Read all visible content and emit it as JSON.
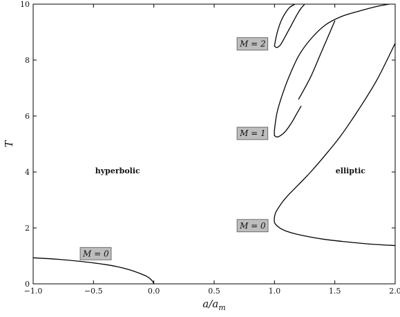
{
  "chart_data": {
    "type": "line",
    "title": "",
    "xlabel": "a/a_m",
    "ylabel": "T",
    "xlabel_parts": {
      "main": "a/a",
      "sub": "m"
    },
    "xlim": [
      -1.0,
      2.0
    ],
    "ylim": [
      0,
      10
    ],
    "x_ticks": [
      -1.0,
      -0.5,
      0.0,
      0.5,
      1.0,
      1.5,
      2.0
    ],
    "x_tick_labels": [
      "−1.0",
      "−0.5",
      "0.0",
      "0.5",
      "1.0",
      "1.5",
      "2.0"
    ],
    "y_ticks": [
      0,
      2,
      4,
      6,
      8,
      10
    ],
    "y_tick_labels": [
      "0",
      "2",
      "4",
      "6",
      "8",
      "10"
    ],
    "grid": false,
    "line_color": "#000000",
    "box_fill": "#bdbdbd",
    "series": [
      {
        "x": [
          -1.0,
          -0.8,
          -0.6,
          -0.4,
          -0.3,
          -0.2,
          -0.12,
          -0.06,
          -0.03,
          -0.01,
          0.0
        ],
        "y": [
          0.93,
          0.88,
          0.8,
          0.69,
          0.61,
          0.5,
          0.38,
          0.27,
          0.18,
          0.09,
          0.0
        ]
      },
      {
        "x": [
          2.0,
          1.8,
          1.6,
          1.4,
          1.2,
          1.1,
          1.05,
          1.02,
          1.0,
          1.0,
          1.01,
          1.03,
          1.07,
          1.12,
          1.2,
          1.3,
          1.42,
          1.55,
          1.7,
          1.85,
          2.0
        ],
        "y": [
          1.37,
          1.42,
          1.5,
          1.6,
          1.76,
          1.88,
          1.98,
          2.08,
          2.2,
          2.4,
          2.55,
          2.7,
          2.95,
          3.2,
          3.55,
          4.0,
          4.6,
          5.3,
          6.25,
          7.3,
          8.6
        ]
      },
      {
        "x": [
          1.0,
          1.0,
          1.02,
          1.06,
          1.12,
          1.2,
          1.3,
          1.42,
          1.55,
          1.7,
          1.85,
          1.95
        ],
        "y": [
          5.3,
          5.5,
          6.1,
          6.7,
          7.4,
          8.15,
          8.75,
          9.25,
          9.55,
          9.75,
          9.92,
          10.0
        ]
      },
      {
        "x": [
          1.0,
          1.02,
          1.05,
          1.09,
          1.14,
          1.18,
          1.22
        ],
        "y": [
          5.3,
          5.25,
          5.3,
          5.45,
          5.75,
          6.05,
          6.35
        ]
      },
      {
        "x": [
          1.2,
          1.3,
          1.38,
          1.45,
          1.5
        ],
        "y": [
          6.6,
          7.4,
          8.2,
          8.9,
          9.4
        ]
      },
      {
        "x": [
          1.0,
          1.01,
          1.03,
          1.06,
          1.1,
          1.13,
          1.17
        ],
        "y": [
          8.5,
          8.75,
          9.1,
          9.45,
          9.75,
          9.9,
          10.0
        ]
      },
      {
        "x": [
          1.0,
          1.02,
          1.05,
          1.09,
          1.14,
          1.19,
          1.22,
          1.25
        ],
        "y": [
          8.5,
          8.45,
          8.55,
          8.85,
          9.25,
          9.65,
          9.85,
          10.0
        ]
      }
    ],
    "annotations": [
      {
        "text": "hyperbolic",
        "x": -0.3,
        "y": 4.05,
        "style": "plain"
      },
      {
        "text": "elliptic",
        "x": 1.63,
        "y": 4.05,
        "style": "plain"
      },
      {
        "text": "M = 0",
        "x": -0.48,
        "y": 1.08,
        "style": "boxed"
      },
      {
        "text": "M = 0",
        "x": 0.82,
        "y": 2.08,
        "style": "boxed"
      },
      {
        "text": "M = 1",
        "x": 0.82,
        "y": 5.38,
        "style": "boxed"
      },
      {
        "text": "M = 2",
        "x": 0.82,
        "y": 8.58,
        "style": "boxed"
      }
    ]
  }
}
